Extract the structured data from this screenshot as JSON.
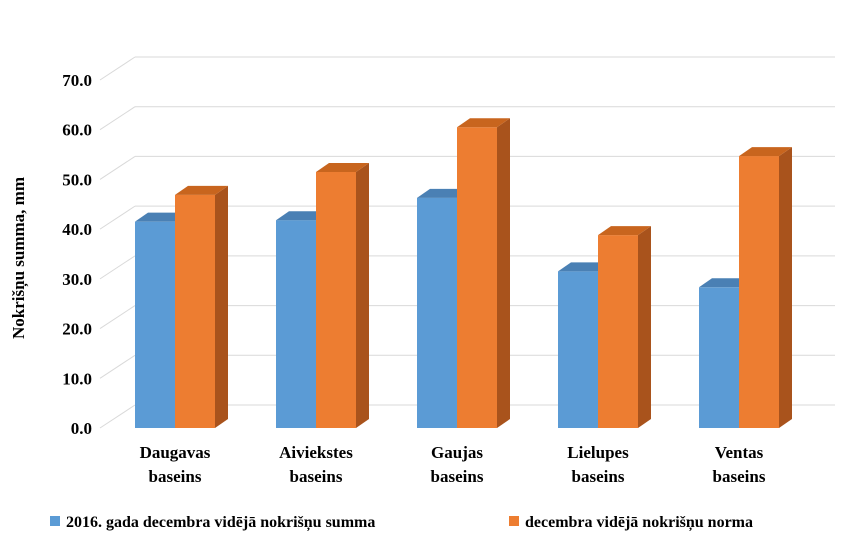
{
  "chart_data": {
    "type": "bar",
    "style": "3d-clustered-column",
    "title": "",
    "xlabel": "",
    "ylabel": "Nokrišņu summa, mm",
    "ylim": [
      0,
      70
    ],
    "yticks": [
      "0.0",
      "10.0",
      "20.0",
      "30.0",
      "40.0",
      "50.0",
      "60.0",
      "70.0"
    ],
    "grid": true,
    "legend_position": "bottom",
    "categories": [
      [
        "Daugavas",
        "baseins"
      ],
      [
        "Aiviekstes",
        "baseins"
      ],
      [
        "Gaujas",
        "baseins"
      ],
      [
        "Lielupes",
        "baseins"
      ],
      [
        "Ventas",
        "baseins"
      ]
    ],
    "series": [
      {
        "name": "2016. gada decembra vidējā nokrišņu summa",
        "color": "#5B9BD5",
        "top_color": "#4A80B4",
        "side_color": "#3E6E9E",
        "values": [
          41.5,
          41.8,
          46.3,
          31.5,
          28.3
        ]
      },
      {
        "name": "decembra vidējā nokrišņu norma",
        "color": "#ED7D31",
        "top_color": "#C8651E",
        "side_color": "#A9531C",
        "values": [
          46.9,
          51.5,
          60.5,
          38.8,
          54.7
        ]
      }
    ]
  }
}
